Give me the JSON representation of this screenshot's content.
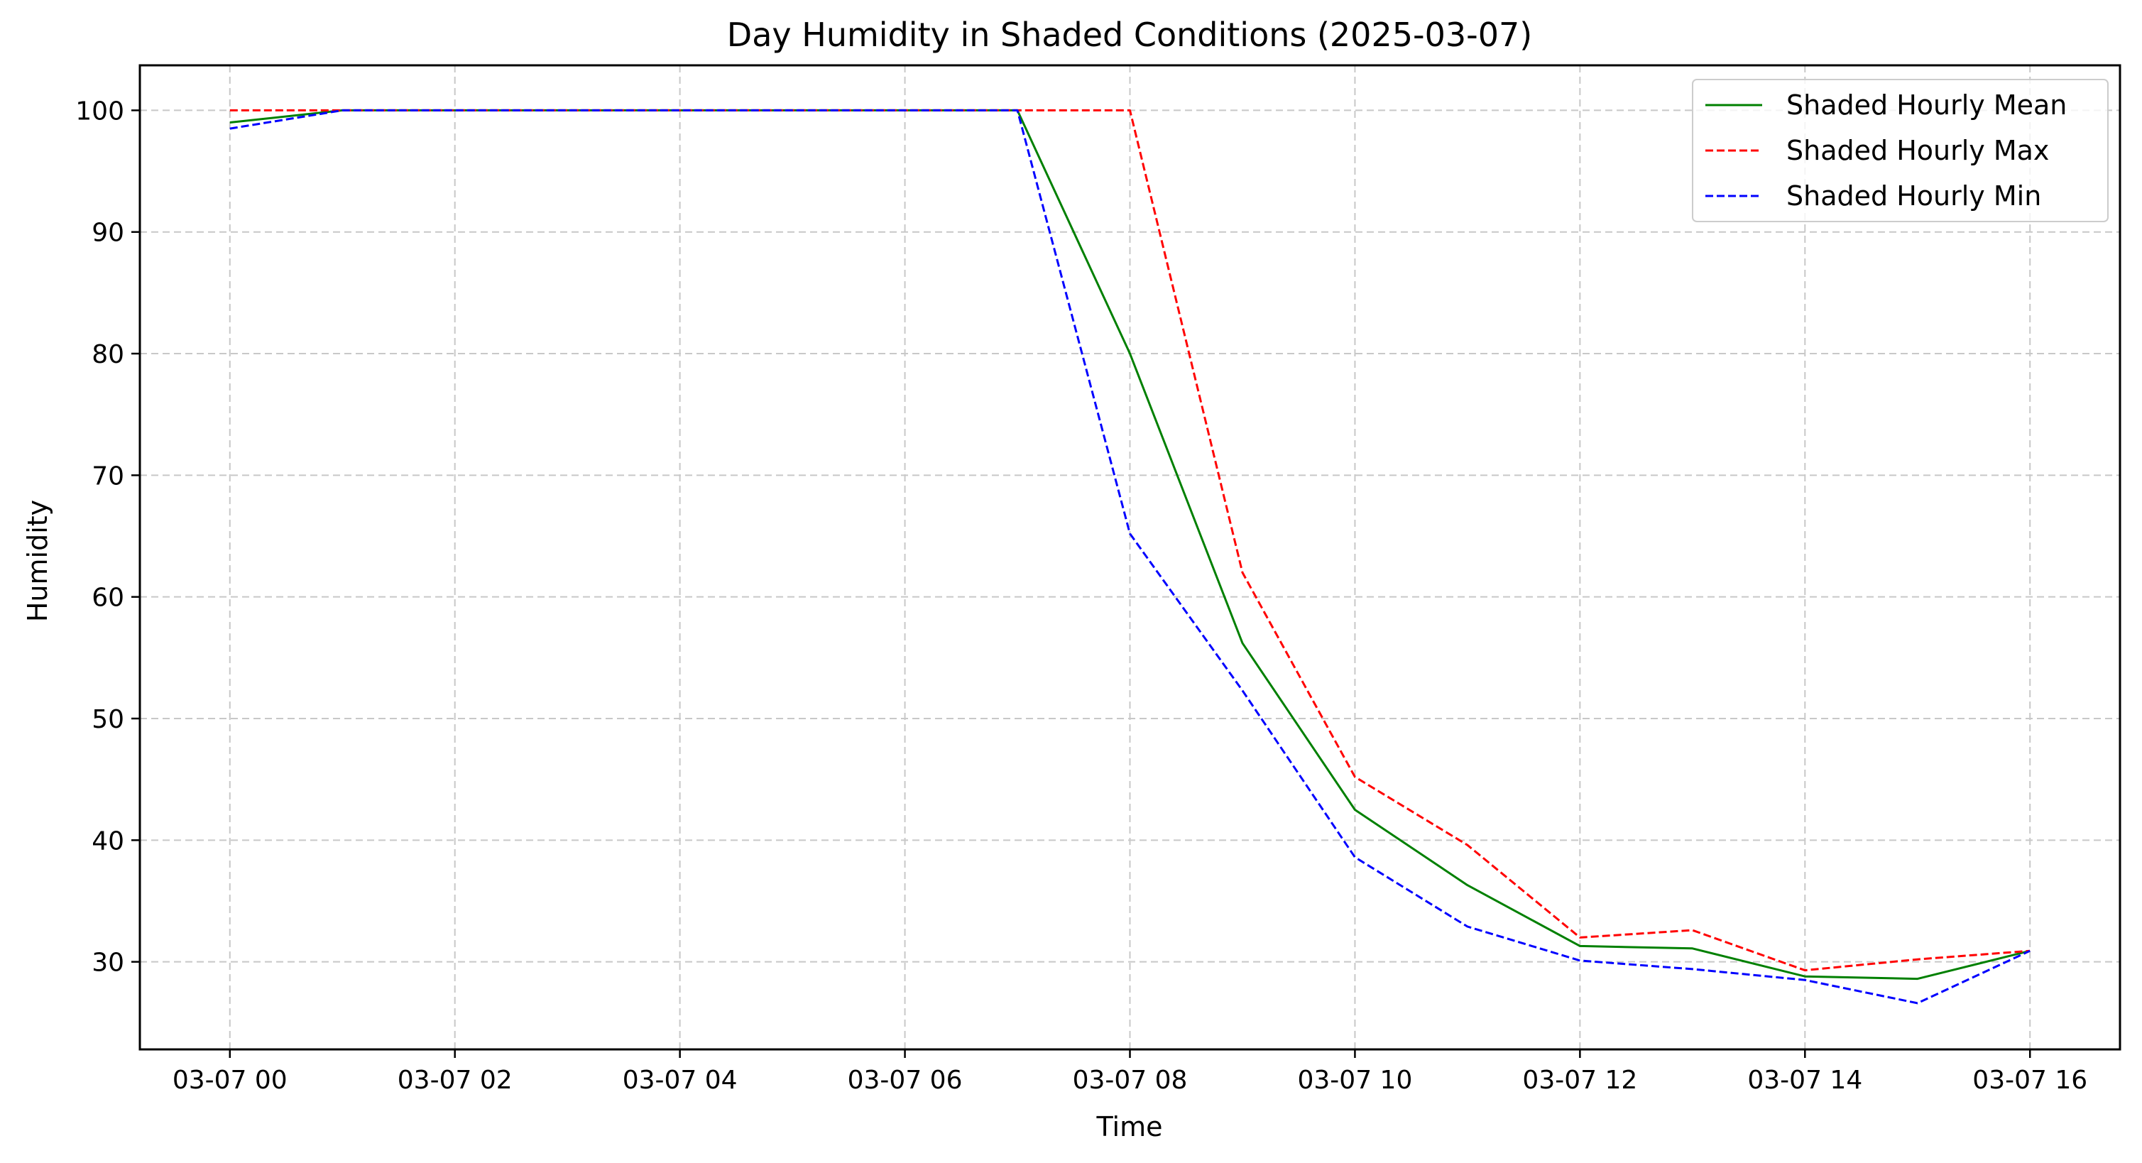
{
  "chart_data": {
    "type": "line",
    "title": "Day Humidity in Shaded Conditions (2025-03-07)",
    "xlabel": "Time",
    "ylabel": "Humidity",
    "x": [
      "03-07 00",
      "03-07 01",
      "03-07 02",
      "03-07 03",
      "03-07 04",
      "03-07 05",
      "03-07 06",
      "03-07 07",
      "03-07 08",
      "03-07 09",
      "03-07 10",
      "03-07 11",
      "03-07 12",
      "03-07 13",
      "03-07 14",
      "03-07 15",
      "03-07 16"
    ],
    "x_ticks": [
      "03-07 00",
      "03-07 02",
      "03-07 04",
      "03-07 06",
      "03-07 08",
      "03-07 10",
      "03-07 12",
      "03-07 14",
      "03-07 16"
    ],
    "y_ticks": [
      30,
      40,
      50,
      60,
      70,
      80,
      90,
      100
    ],
    "ylim": [
      22.8,
      103.7
    ],
    "xlim_hours": [
      -0.8,
      16.8
    ],
    "grid": true,
    "legend_position": "top-right",
    "series": [
      {
        "name": "Shaded Hourly Mean",
        "color": "#008000",
        "dash": "solid",
        "values": [
          99.0,
          100,
          100,
          100,
          100,
          100,
          100,
          100,
          80.0,
          56.2,
          42.5,
          36.3,
          31.3,
          31.1,
          28.8,
          28.6,
          30.9
        ]
      },
      {
        "name": "Shaded Hourly Max",
        "color": "#ff0000",
        "dash": "dashed",
        "values": [
          100,
          100,
          100,
          100,
          100,
          100,
          100,
          100,
          100,
          62.0,
          45.2,
          39.6,
          32.0,
          32.6,
          29.3,
          30.2,
          30.9
        ]
      },
      {
        "name": "Shaded Hourly Min",
        "color": "#0000ff",
        "dash": "dashed",
        "values": [
          98.5,
          100,
          100,
          100,
          100,
          100,
          100,
          100,
          65.2,
          52.3,
          38.6,
          32.9,
          30.1,
          29.4,
          28.5,
          26.6,
          30.9
        ]
      }
    ]
  }
}
